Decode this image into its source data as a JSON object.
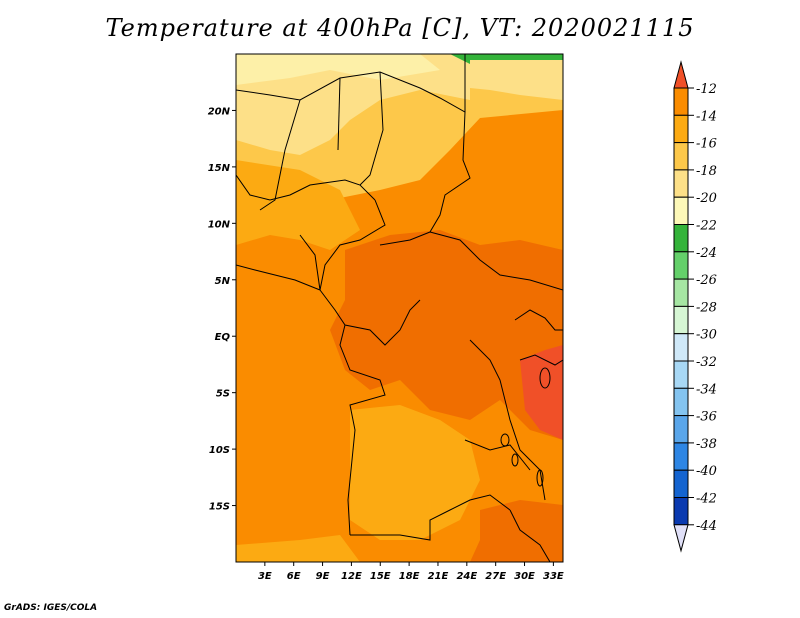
{
  "title": "Temperature at 400hPa [C], VT: 2020021115",
  "credit": "GrADS: IGES/COLA",
  "map": {
    "lon_range": [
      0,
      34
    ],
    "lat_range": [
      -20,
      25
    ],
    "x_ticks": [
      "3E",
      "6E",
      "9E",
      "12E",
      "15E",
      "18E",
      "21E",
      "24E",
      "27E",
      "30E",
      "33E"
    ],
    "y_ticks": [
      "20N",
      "15N",
      "10N",
      "5N",
      "EQ",
      "5S",
      "10S",
      "15S"
    ],
    "x_tick_values": [
      3,
      6,
      9,
      12,
      15,
      18,
      21,
      24,
      27,
      30,
      33
    ],
    "y_tick_values": [
      20,
      15,
      10,
      5,
      0,
      -5,
      -10,
      -15
    ]
  },
  "colorbar": {
    "labels": [
      "-12",
      "-14",
      "-16",
      "-18",
      "-20",
      "-22",
      "-24",
      "-26",
      "-28",
      "-30",
      "-32",
      "-34",
      "-36",
      "-38",
      "-40",
      "-42",
      "-44"
    ],
    "colors": [
      "#f05028",
      "#fa8c00",
      "#fcaa12",
      "#fdc84a",
      "#fde088",
      "#fdf8b8",
      "#34b33a",
      "#64d06a",
      "#a6e6a3",
      "#d6f6d4",
      "#cfe8f8",
      "#a8d8f5",
      "#84c4f0",
      "#5aa6ea",
      "#2e86e4",
      "#1464d0",
      "#0a3ab0",
      "#0a1a78"
    ],
    "end_colors": {
      "top": "#f05028",
      "bottom": "#e0e0f8"
    }
  },
  "regions": {
    "colors": {
      "pale_yellow": "#fde088",
      "light_yellow": "#fdf0a8",
      "yellow": "#fdc84a",
      "orange_light": "#fcaa12",
      "orange": "#fa8c00",
      "orange_dark": "#f06e00",
      "red_orange": "#f05028",
      "green": "#34b33a"
    }
  }
}
